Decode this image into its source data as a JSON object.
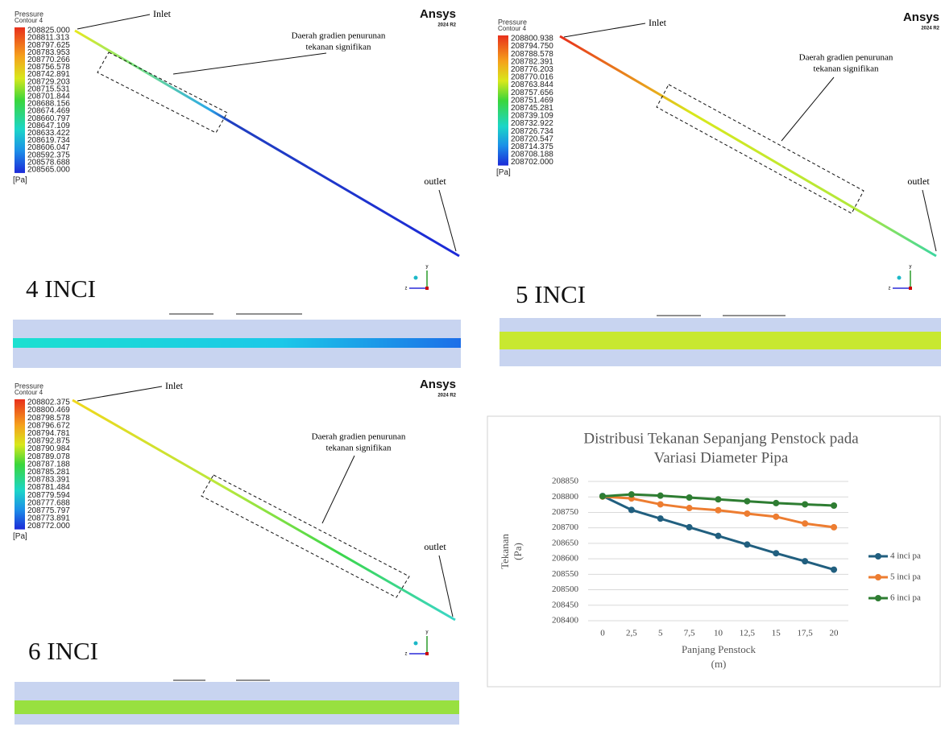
{
  "panels": [
    {
      "legend_title": "Pressure",
      "legend_subtitle": "Contour 4",
      "legend_values": [
        "208825.000",
        "208811.313",
        "208797.625",
        "208783.953",
        "208770.266",
        "208756.578",
        "208742.891",
        "208729.203",
        "208715.531",
        "208701.844",
        "208688.156",
        "208674.469",
        "208660.797",
        "208647.109",
        "208633.422",
        "208619.734",
        "208606.047",
        "208592.375",
        "208578.688",
        "208565.000"
      ],
      "unit": "[Pa]",
      "logo": "Ansys",
      "version": "2024 R2",
      "inlet": "Inlet",
      "region": [
        "Daerah gradien penurunan",
        "tekanan signifikan"
      ],
      "outlet": "outlet",
      "axis_y": "y",
      "axis_z": "z",
      "label": "4 INCI"
    },
    {
      "legend_title": "Pressure",
      "legend_subtitle": "Contour 4",
      "legend_values": [
        "208800.938",
        "208794.750",
        "208788.578",
        "208782.391",
        "208776.203",
        "208770.016",
        "208763.844",
        "208757.656",
        "208751.469",
        "208745.281",
        "208739.109",
        "208732.922",
        "208726.734",
        "208720.547",
        "208714.375",
        "208708.188",
        "208702.000"
      ],
      "unit": "[Pa]",
      "logo": "Ansys",
      "version": "2024 R2",
      "inlet": "Inlet",
      "region": [
        "Daerah gradien penurunan",
        "tekanan signifikan"
      ],
      "outlet": "outlet",
      "axis_y": "y",
      "axis_z": "z",
      "label": "5 INCI"
    },
    {
      "legend_title": "Pressure",
      "legend_subtitle": "Contour 4",
      "legend_values": [
        "208802.375",
        "208800.469",
        "208798.578",
        "208796.672",
        "208794.781",
        "208792.875",
        "208790.984",
        "208789.078",
        "208787.188",
        "208785.281",
        "208783.391",
        "208781.484",
        "208779.594",
        "208777.688",
        "208775.797",
        "208773.891",
        "208772.000"
      ],
      "unit": "[Pa]",
      "logo": "Ansys",
      "version": "2024 R2",
      "inlet": "Inlet",
      "region": [
        "Daerah gradien penurunan",
        "tekanan signifikan"
      ],
      "outlet": "outlet",
      "axis_y": "y",
      "axis_z": "z",
      "label": "6 INCI"
    }
  ],
  "chart_data": {
    "type": "line",
    "title": [
      "Distribusi Tekanan Sepanjang Penstock pada",
      "Variasi Diameter Pipa"
    ],
    "x_label": [
      "Panjang Penstock",
      "(m)"
    ],
    "y_label": [
      "Tekanan",
      "(Pa)"
    ],
    "categories": [
      "0",
      "2,5",
      "5",
      "7,5",
      "10",
      "12,5",
      "15",
      "17,5",
      "20"
    ],
    "series": [
      {
        "name": "4 inci pa",
        "color": "#215f7f",
        "values": [
          208803,
          208758,
          208730,
          208702,
          208674,
          208646,
          208618,
          208592,
          208565
        ]
      },
      {
        "name": "5 inci pa",
        "color": "#ed7d31",
        "values": [
          208801,
          208795,
          208776,
          208764,
          208757,
          208746,
          208736,
          208714,
          208702
        ]
      },
      {
        "name": "6 inci pa",
        "color": "#2e7d32",
        "values": [
          208802,
          208808,
          208804,
          208798,
          208792,
          208786,
          208780,
          208776,
          208772
        ]
      }
    ],
    "ylim": [
      208400,
      208850
    ],
    "yticks": [
      208400,
      208450,
      208500,
      208550,
      208600,
      208650,
      208700,
      208750,
      208800,
      208850
    ],
    "grid": true,
    "legend": "right"
  }
}
